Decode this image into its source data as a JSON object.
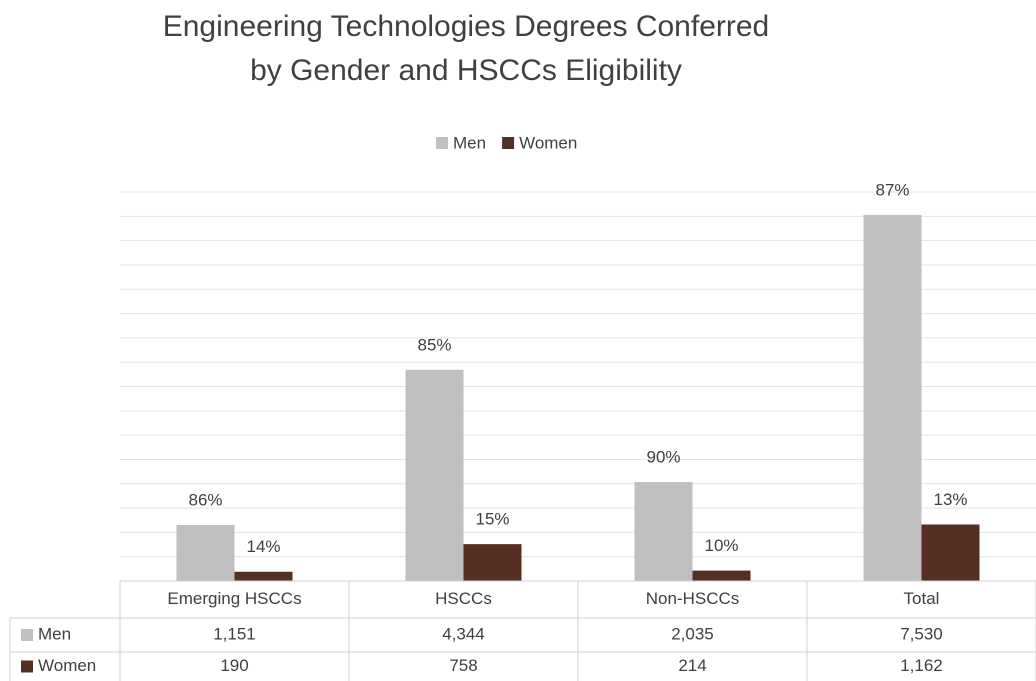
{
  "chart_data": {
    "type": "bar",
    "title": [
      "Engineering Technologies Degrees Conferred",
      "by Gender and HSCCs Eligibility"
    ],
    "categories": [
      "Emerging HSCCs",
      "HSCCs",
      "Non-HSCCs",
      "Total"
    ],
    "series": [
      {
        "name": "Men",
        "color": "#bfbfbf",
        "values": [
          1151,
          4344,
          2035,
          7530
        ],
        "value_labels": [
          "1,151",
          "4,344",
          "2,035",
          "7,530"
        ],
        "percent_labels": [
          "86%",
          "85%",
          "90%",
          "87%"
        ]
      },
      {
        "name": "Women",
        "color": "#552f22",
        "values": [
          190,
          758,
          214,
          1162
        ],
        "value_labels": [
          "190",
          "758",
          "214",
          "1,162"
        ],
        "percent_labels": [
          "14%",
          "15%",
          "10%",
          "13%"
        ]
      }
    ],
    "ylim": [
      0,
      8000
    ],
    "yticks": [
      0,
      500,
      1000,
      1500,
      2000,
      2500,
      3000,
      3500,
      4000,
      4500,
      5000,
      5500,
      6000,
      6500,
      7000,
      7500,
      8000
    ],
    "grid": true,
    "legend": "top",
    "data_table": true
  }
}
